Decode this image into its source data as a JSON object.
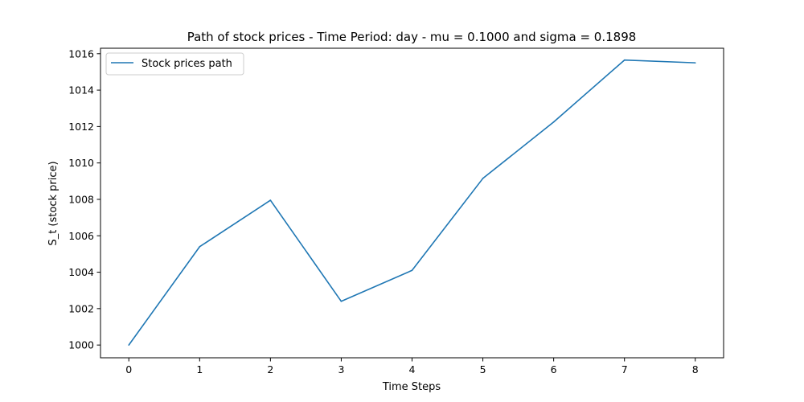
{
  "chart_data": {
    "type": "line",
    "title": "Path of stock prices - Time Period: day - mu = 0.1000 and sigma = 0.1898",
    "xlabel": "Time Steps",
    "ylabel": "S_t (stock price)",
    "x": [
      0,
      1,
      2,
      3,
      4,
      5,
      6,
      7,
      8
    ],
    "series": [
      {
        "name": "Stock prices path",
        "color": "#1f77b4",
        "values": [
          1000.0,
          1005.4,
          1007.95,
          1002.4,
          1004.1,
          1009.15,
          1012.25,
          1015.65,
          1015.5
        ]
      }
    ],
    "xlim": [
      -0.4,
      8.4
    ],
    "ylim": [
      999.3,
      1016.3
    ],
    "xticks": [
      0,
      1,
      2,
      3,
      4,
      5,
      6,
      7,
      8
    ],
    "yticks": [
      1000,
      1002,
      1004,
      1006,
      1008,
      1010,
      1012,
      1014,
      1016
    ],
    "grid": false,
    "legend_position": "top-left"
  }
}
